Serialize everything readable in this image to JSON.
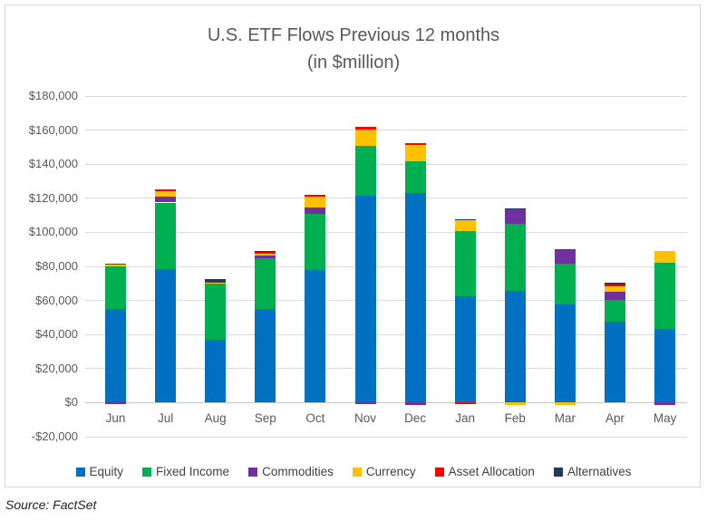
{
  "title": "U.S. ETF Flows Previous 12 months",
  "subtitle": "(in $million)",
  "source": "Source: FactSet",
  "colors": {
    "equity": "#0070C0",
    "fixed_income": "#00B050",
    "commodities": "#7030A0",
    "currency": "#FFC000",
    "asset_allocation": "#FF0000",
    "alternatives": "#1F3864",
    "gridline": "#D9D9D9",
    "axis_text": "#595959"
  },
  "chart_data": {
    "type": "bar",
    "stacked": true,
    "title": "U.S. ETF Flows Previous 12 months",
    "subtitle": "(in $million)",
    "categories": [
      "Jun",
      "Jul",
      "Aug",
      "Sep",
      "Oct",
      "Nov",
      "Dec",
      "Jan",
      "Feb",
      "Mar",
      "Apr",
      "May"
    ],
    "series": [
      {
        "name": "Equity",
        "color": "#0070C0",
        "values": [
          55000,
          78500,
          37000,
          55000,
          78000,
          121500,
          123300,
          62500,
          65500,
          57500,
          47500,
          43500
        ]
      },
      {
        "name": "Fixed Income",
        "color": "#00B050",
        "values": [
          25000,
          39000,
          33000,
          30000,
          33000,
          29500,
          18400,
          38000,
          39500,
          24000,
          13000,
          38500
        ]
      },
      {
        "name": "Commodities",
        "color": "#7030A0",
        "values": [
          -1000,
          3200,
          0,
          1500,
          3700,
          -1000,
          -1500,
          0,
          8500,
          8000,
          4400,
          -1500
        ]
      },
      {
        "name": "Currency",
        "color": "#FFC000",
        "values": [
          800,
          3200,
          500,
          1000,
          6400,
          9500,
          9800,
          6500,
          -1500,
          -1500,
          3200,
          7000
        ]
      },
      {
        "name": "Asset Allocation",
        "color": "#FF0000",
        "values": [
          800,
          1300,
          500,
          1200,
          1100,
          1200,
          1000,
          -1000,
          0,
          500,
          1100,
          0
        ]
      },
      {
        "name": "Alternatives",
        "color": "#1F3864",
        "values": [
          0,
          0,
          1600,
          500,
          0,
          0,
          0,
          800,
          800,
          0,
          1400,
          0
        ]
      }
    ],
    "ylim": [
      -20000,
      180000
    ],
    "y_step": 20000,
    "y_tick_labels": [
      "$180,000",
      "$160,000",
      "$140,000",
      "$120,000",
      "$100,000",
      "$80,000",
      "$60,000",
      "$40,000",
      "$20,000",
      "$0",
      "-$20,000"
    ],
    "grid": true,
    "legend_position": "bottom",
    "xlabel": "",
    "ylabel": ""
  }
}
